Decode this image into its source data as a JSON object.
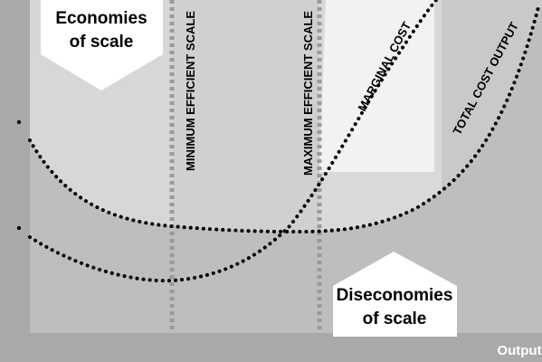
{
  "labels": {
    "economies_line1": "Economies",
    "economies_line2": "of scale",
    "diseconomies_line1": "Diseconomies",
    "diseconomies_line2": "of scale",
    "min_efficient_scale": "MINIMUM EFFICIENT SCALE",
    "max_efficient_scale": "MAXIMUM EFFICIENT SCALE",
    "marginal_cost": "MARGINAL COST",
    "total_cost_output": "TOTAL COST OUTPUT",
    "x_axis": "Output"
  },
  "colors": {
    "frame": "#a9a9a9",
    "panel_left": "#d7d7d7",
    "panel_middle": "#d0d0d0",
    "panel_right": "#c9c9c9",
    "under_curve": "#bcbcbc",
    "guide_line": "#9a9a9a",
    "curve": "#000000",
    "callout": "#ffffff"
  }
}
